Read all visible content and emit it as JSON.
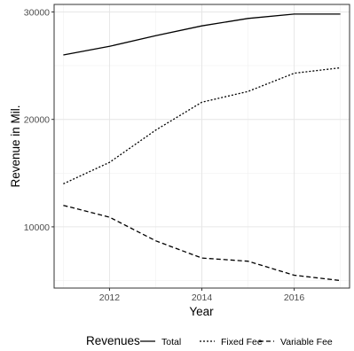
{
  "chart_data": {
    "type": "line",
    "title": "",
    "xlabel": "Year",
    "ylabel": "Revenue in Mil.",
    "xlim": [
      2010.8,
      2017.2
    ],
    "ylim": [
      4300,
      30700
    ],
    "x_ticks": [
      2012,
      2014,
      2016
    ],
    "x_tick_labels": [
      "2012",
      "2014",
      "2016"
    ],
    "x_minor_ticks": [
      2011,
      2013,
      2015,
      2017
    ],
    "y_ticks": [
      10000,
      20000,
      30000
    ],
    "y_tick_labels": [
      "10000",
      "20000",
      "30000"
    ],
    "y_minor_ticks": [
      5000,
      15000,
      25000
    ],
    "grid": true,
    "legend_title": "Revenues",
    "legend_position": "bottom",
    "x": [
      2011,
      2012,
      2013,
      2014,
      2015,
      2016,
      2017
    ],
    "series": [
      {
        "name": "Total",
        "linetype": "solid",
        "values": [
          26000,
          26800,
          27800,
          28700,
          29400,
          29800,
          29800
        ]
      },
      {
        "name": "Fixed Fee",
        "linetype": "dotted",
        "values": [
          14000,
          16000,
          19000,
          21600,
          22600,
          24300,
          24800
        ]
      },
      {
        "name": "Variable Fee",
        "linetype": "dashed",
        "values": [
          12000,
          10900,
          8700,
          7100,
          6800,
          5500,
          5000
        ]
      }
    ]
  }
}
